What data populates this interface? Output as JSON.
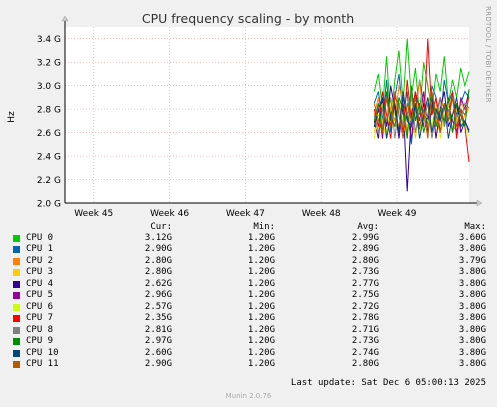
{
  "title": "CPU frequency scaling - by month",
  "side_label": "RRDTOOL / TOBI OETIKER",
  "footer": "Munin 2.0.76",
  "last_update": "Last update: Sat Dec  6 05:00:13 2025",
  "legend_headers": {
    "cur": "Cur:",
    "min": "Min:",
    "avg": "Avg:",
    "max": "Max:"
  },
  "legend": [
    {
      "name": "CPU 0",
      "color": "#00cc00",
      "cur": "3.12G",
      "min": "1.20G",
      "avg": "2.99G",
      "max": "3.60G"
    },
    {
      "name": "CPU 1",
      "color": "#0066b3",
      "cur": "2.90G",
      "min": "1.20G",
      "avg": "2.89G",
      "max": "3.80G"
    },
    {
      "name": "CPU 2",
      "color": "#ff8000",
      "cur": "2.80G",
      "min": "1.20G",
      "avg": "2.80G",
      "max": "3.79G"
    },
    {
      "name": "CPU 3",
      "color": "#ffcc00",
      "cur": "2.80G",
      "min": "1.20G",
      "avg": "2.73G",
      "max": "3.80G"
    },
    {
      "name": "CPU 4",
      "color": "#330099",
      "cur": "2.62G",
      "min": "1.20G",
      "avg": "2.77G",
      "max": "3.80G"
    },
    {
      "name": "CPU 5",
      "color": "#990099",
      "cur": "2.96G",
      "min": "1.20G",
      "avg": "2.75G",
      "max": "3.80G"
    },
    {
      "name": "CPU 6",
      "color": "#ccff00",
      "cur": "2.57G",
      "min": "1.20G",
      "avg": "2.72G",
      "max": "3.80G"
    },
    {
      "name": "CPU 7",
      "color": "#ff0000",
      "cur": "2.35G",
      "min": "1.20G",
      "avg": "2.78G",
      "max": "3.80G"
    },
    {
      "name": "CPU 8",
      "color": "#808080",
      "cur": "2.81G",
      "min": "1.20G",
      "avg": "2.71G",
      "max": "3.80G"
    },
    {
      "name": "CPU 9",
      "color": "#008f00",
      "cur": "2.97G",
      "min": "1.20G",
      "avg": "2.73G",
      "max": "3.80G"
    },
    {
      "name": "CPU 10",
      "color": "#00487d",
      "cur": "2.60G",
      "min": "1.20G",
      "avg": "2.74G",
      "max": "3.80G"
    },
    {
      "name": "CPU 11",
      "color": "#b35a00",
      "cur": "2.90G",
      "min": "1.20G",
      "avg": "2.80G",
      "max": "3.80G"
    }
  ],
  "chart_data": {
    "type": "line",
    "title": "CPU frequency scaling - by month",
    "ylabel": "Hz",
    "xlabel": "",
    "ylim": [
      2.0,
      3.5
    ],
    "y_ticks": [
      "2.0 G",
      "2.2 G",
      "2.4 G",
      "2.6 G",
      "2.8 G",
      "3.0 G",
      "3.2 G",
      "3.4 G"
    ],
    "y_tick_values": [
      2.0,
      2.2,
      2.4,
      2.6,
      2.8,
      3.0,
      3.2,
      3.4
    ],
    "x_ticks": [
      "Week 45",
      "Week 46",
      "Week 47",
      "Week 48",
      "Week 49"
    ],
    "x_tick_values": [
      45,
      46,
      47,
      48,
      49
    ],
    "xlim": [
      44.62,
      49.95
    ],
    "data_start": 48.7,
    "grid": true,
    "background": "#ffffff",
    "gridcolor": "#ff9999",
    "series": [
      {
        "name": "CPU 0",
        "color": "#00cc00",
        "values": [
          2.95,
          3.1,
          2.8,
          3.25,
          2.7,
          3.05,
          3.3,
          2.85,
          3.4,
          2.9,
          3.15,
          2.75,
          3.2,
          3.0,
          2.8,
          3.1,
          2.95,
          3.25,
          2.85,
          3.05,
          2.9,
          3.15,
          3.0,
          3.12
        ]
      },
      {
        "name": "CPU 1",
        "color": "#0066b3",
        "values": [
          2.85,
          2.95,
          2.7,
          3.05,
          2.6,
          2.9,
          3.1,
          2.75,
          2.95,
          2.5,
          2.8,
          3.05,
          2.85,
          2.65,
          3.0,
          2.9,
          2.7,
          3.05,
          2.85,
          2.95,
          2.75,
          2.85,
          2.95,
          2.9
        ]
      },
      {
        "name": "CPU 2",
        "color": "#ff8000",
        "values": [
          2.75,
          2.9,
          2.65,
          2.95,
          2.8,
          2.7,
          3.0,
          2.85,
          2.6,
          2.9,
          2.75,
          3.05,
          2.7,
          2.85,
          2.95,
          2.65,
          2.9,
          2.8,
          2.75,
          2.95,
          2.7,
          2.85,
          2.8,
          2.8
        ]
      },
      {
        "name": "CPU 3",
        "color": "#ffcc00",
        "values": [
          2.6,
          2.85,
          2.7,
          2.55,
          2.9,
          2.75,
          2.65,
          2.95,
          2.7,
          2.8,
          2.55,
          2.85,
          2.75,
          2.65,
          2.9,
          2.7,
          2.6,
          2.85,
          2.75,
          2.7,
          2.8,
          2.65,
          2.75,
          2.8
        ]
      },
      {
        "name": "CPU 4",
        "color": "#330099",
        "values": [
          2.7,
          2.55,
          2.9,
          2.65,
          3.0,
          2.8,
          2.55,
          2.85,
          2.1,
          2.75,
          2.95,
          2.6,
          2.85,
          2.7,
          2.9,
          2.55,
          2.8,
          2.95,
          2.65,
          2.75,
          2.85,
          2.6,
          2.7,
          2.62
        ]
      },
      {
        "name": "CPU 5",
        "color": "#990099",
        "values": [
          2.65,
          2.8,
          2.55,
          2.95,
          2.7,
          2.85,
          2.6,
          2.9,
          2.75,
          2.55,
          2.85,
          2.7,
          2.95,
          2.6,
          2.8,
          2.75,
          2.9,
          2.65,
          2.85,
          2.7,
          2.6,
          2.9,
          2.8,
          2.96
        ]
      },
      {
        "name": "CPU 6",
        "color": "#ccff00",
        "values": [
          2.55,
          2.75,
          2.85,
          2.6,
          2.8,
          2.65,
          2.9,
          2.7,
          2.55,
          2.85,
          2.75,
          2.6,
          2.8,
          2.7,
          2.65,
          2.9,
          2.55,
          2.75,
          2.85,
          2.6,
          2.7,
          2.8,
          2.65,
          2.57
        ]
      },
      {
        "name": "CPU 7",
        "color": "#ff0000",
        "values": [
          2.8,
          2.65,
          2.95,
          2.75,
          2.55,
          2.9,
          2.85,
          2.6,
          3.05,
          2.7,
          2.95,
          2.8,
          2.65,
          3.4,
          2.75,
          2.9,
          2.6,
          2.85,
          2.7,
          2.95,
          2.55,
          2.8,
          2.65,
          2.35
        ]
      },
      {
        "name": "CPU 8",
        "color": "#808080",
        "values": [
          2.75,
          2.6,
          2.8,
          2.7,
          2.9,
          2.55,
          2.85,
          2.65,
          2.75,
          2.95,
          2.6,
          2.8,
          2.7,
          2.85,
          2.55,
          2.75,
          2.9,
          2.65,
          2.8,
          2.6,
          2.75,
          2.7,
          2.85,
          2.81
        ]
      },
      {
        "name": "CPU 9",
        "color": "#008f00",
        "values": [
          2.7,
          2.85,
          2.6,
          2.95,
          2.75,
          2.65,
          2.9,
          2.8,
          2.55,
          3.0,
          2.7,
          2.85,
          2.6,
          2.75,
          2.95,
          2.65,
          2.8,
          2.7,
          2.9,
          2.6,
          2.85,
          2.75,
          2.65,
          2.97
        ]
      },
      {
        "name": "CPU 10",
        "color": "#00487d",
        "values": [
          2.65,
          2.8,
          2.9,
          2.55,
          2.75,
          2.85,
          2.6,
          2.95,
          2.7,
          2.65,
          2.85,
          2.55,
          2.75,
          2.9,
          2.6,
          2.8,
          2.7,
          2.85,
          2.55,
          2.75,
          2.9,
          2.65,
          2.7,
          2.6
        ]
      },
      {
        "name": "CPU 11",
        "color": "#b35a00",
        "values": [
          2.85,
          2.7,
          2.6,
          2.9,
          2.65,
          2.95,
          2.75,
          2.55,
          2.85,
          2.7,
          2.9,
          2.65,
          2.8,
          2.55,
          2.95,
          2.75,
          2.6,
          2.85,
          2.7,
          2.9,
          2.65,
          2.8,
          2.75,
          2.9
        ]
      }
    ]
  }
}
